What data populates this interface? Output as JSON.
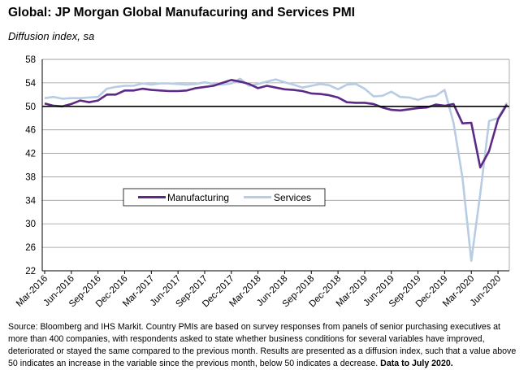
{
  "title": "Global: JP Morgan Global Manufacuring and Services PMI",
  "subtitle": "Diffusion index, sa",
  "source_text": "Source: Bloomberg and IHS Markit.  Country PMIs are based on survey responses from panels of senior purchasing executives at more than 400 companies, with respondents asked to state whether business conditions for several variables have improved, deteriorated or stayed the same compared to the previous month. Results are presented as a diffusion index,  such that a value above 50 indicates an increase in the variable since the previous month, below 50 indicates a decrease.",
  "source_bold": "Data to July 2020.",
  "colors": {
    "manufacturing": "#5c2a86",
    "services": "#b8cce4",
    "grid": "#9a9a9a",
    "axis": "#000000"
  },
  "chart_data": {
    "type": "line",
    "title": "Global: JP Morgan Global Manufacuring and Services PMI",
    "ylabel": "Diffusion index, sa",
    "ylim": [
      22,
      58
    ],
    "yticks": [
      22,
      26,
      30,
      34,
      38,
      42,
      46,
      50,
      54,
      58
    ],
    "grid": true,
    "legend_position": "lower-left inside plot",
    "x": [
      "Mar-2016",
      "Apr-2016",
      "May-2016",
      "Jun-2016",
      "Jul-2016",
      "Aug-2016",
      "Sep-2016",
      "Oct-2016",
      "Nov-2016",
      "Dec-2016",
      "Jan-2017",
      "Feb-2017",
      "Mar-2017",
      "Apr-2017",
      "May-2017",
      "Jun-2017",
      "Jul-2017",
      "Aug-2017",
      "Sep-2017",
      "Oct-2017",
      "Nov-2017",
      "Dec-2017",
      "Jan-2018",
      "Feb-2018",
      "Mar-2018",
      "Apr-2018",
      "May-2018",
      "Jun-2018",
      "Jul-2018",
      "Aug-2018",
      "Sep-2018",
      "Oct-2018",
      "Nov-2018",
      "Dec-2018",
      "Jan-2019",
      "Feb-2019",
      "Mar-2019",
      "Apr-2019",
      "May-2019",
      "Jun-2019",
      "Jul-2019",
      "Aug-2019",
      "Sep-2019",
      "Oct-2019",
      "Nov-2019",
      "Dec-2019",
      "Jan-2020",
      "Feb-2020",
      "Mar-2020",
      "Apr-2020",
      "May-2020",
      "Jun-2020",
      "Jul-2020"
    ],
    "x_tick_labels": [
      "Mar-2016",
      "Jun-2016",
      "Sep-2016",
      "Dec-2016",
      "Mar-2017",
      "Jun-2017",
      "Sep-2017",
      "Dec-2017",
      "Mar-2018",
      "Jun-2018",
      "Sep-2018",
      "Dec-2018",
      "Mar-2019",
      "Jun-2019",
      "Sep-2019",
      "Dec-2019",
      "Mar-2020",
      "Jun-2020"
    ],
    "series": [
      {
        "name": "Manufacturing",
        "values": [
          50.5,
          50.1,
          50.0,
          50.4,
          51.0,
          50.7,
          51.0,
          52.0,
          52.0,
          52.7,
          52.7,
          53.0,
          52.8,
          52.7,
          52.6,
          52.6,
          52.7,
          53.1,
          53.3,
          53.5,
          54.0,
          54.5,
          54.2,
          53.8,
          53.1,
          53.5,
          53.2,
          52.9,
          52.8,
          52.6,
          52.2,
          52.1,
          51.9,
          51.5,
          50.7,
          50.6,
          50.6,
          50.4,
          49.8,
          49.4,
          49.3,
          49.5,
          49.7,
          49.8,
          50.3,
          50.1,
          50.4,
          47.1,
          47.2,
          39.6,
          42.4,
          47.8,
          50.3
        ]
      },
      {
        "name": "Services",
        "values": [
          51.4,
          51.6,
          51.3,
          51.4,
          51.4,
          51.5,
          51.6,
          53.0,
          53.3,
          53.5,
          53.5,
          53.9,
          53.7,
          53.9,
          53.9,
          53.8,
          53.7,
          53.8,
          54.1,
          53.8,
          53.7,
          53.9,
          54.7,
          53.5,
          53.8,
          54.2,
          54.6,
          54.1,
          53.7,
          53.2,
          53.5,
          53.8,
          53.6,
          52.9,
          53.7,
          53.8,
          53.0,
          51.7,
          51.8,
          52.5,
          51.6,
          51.5,
          51.1,
          51.6,
          51.8,
          52.8,
          47.2,
          37.9,
          23.7,
          35.1,
          47.5,
          48.0,
          50.6
        ]
      }
    ]
  }
}
